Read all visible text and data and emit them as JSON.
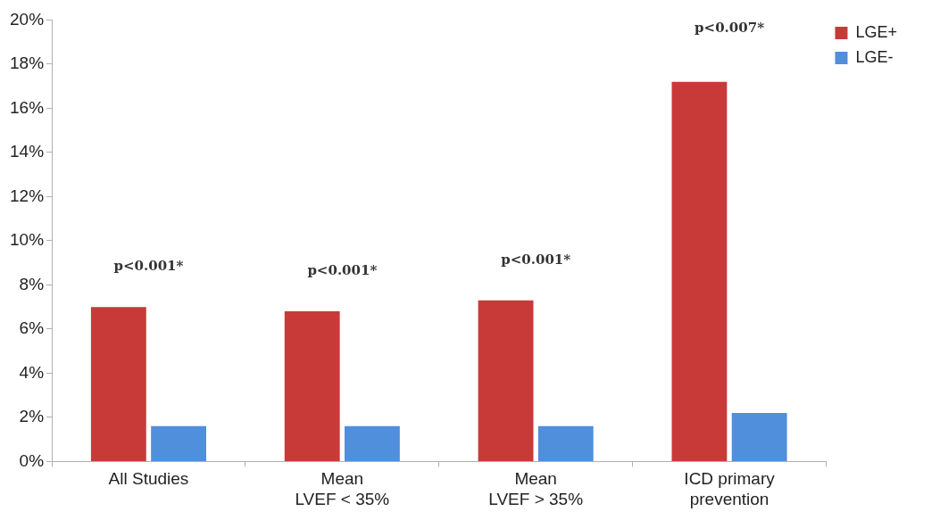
{
  "chart_data": {
    "type": "bar",
    "categories": [
      "All Studies",
      "Mean\nLVEF < 35%",
      "Mean\nLVEF > 35%",
      "ICD primary\nprevention"
    ],
    "series": [
      {
        "name": "LGE+",
        "color": "#c83a38",
        "values": [
          7.0,
          6.8,
          7.3,
          17.2
        ]
      },
      {
        "name": "LGE-",
        "color": "#4f8fdc",
        "values": [
          1.6,
          1.6,
          1.6,
          2.2
        ]
      }
    ],
    "ylim": [
      0,
      20
    ],
    "yticks": [
      {
        "value": 0,
        "label": "0%"
      },
      {
        "value": 2,
        "label": "2%"
      },
      {
        "value": 4,
        "label": "4%"
      },
      {
        "value": 6,
        "label": "6%"
      },
      {
        "value": 8,
        "label": "8%"
      },
      {
        "value": 10,
        "label": "10%"
      },
      {
        "value": 12,
        "label": "12%"
      },
      {
        "value": 14,
        "label": "14%"
      },
      {
        "value": 16,
        "label": "16%"
      },
      {
        "value": 18,
        "label": "18%"
      },
      {
        "value": 20,
        "label": "20%"
      }
    ],
    "annotations": [
      "p<0.001*",
      "p<0.001*",
      "p<0.001*",
      "p<0.007*"
    ],
    "grid": false,
    "legend": "right"
  }
}
